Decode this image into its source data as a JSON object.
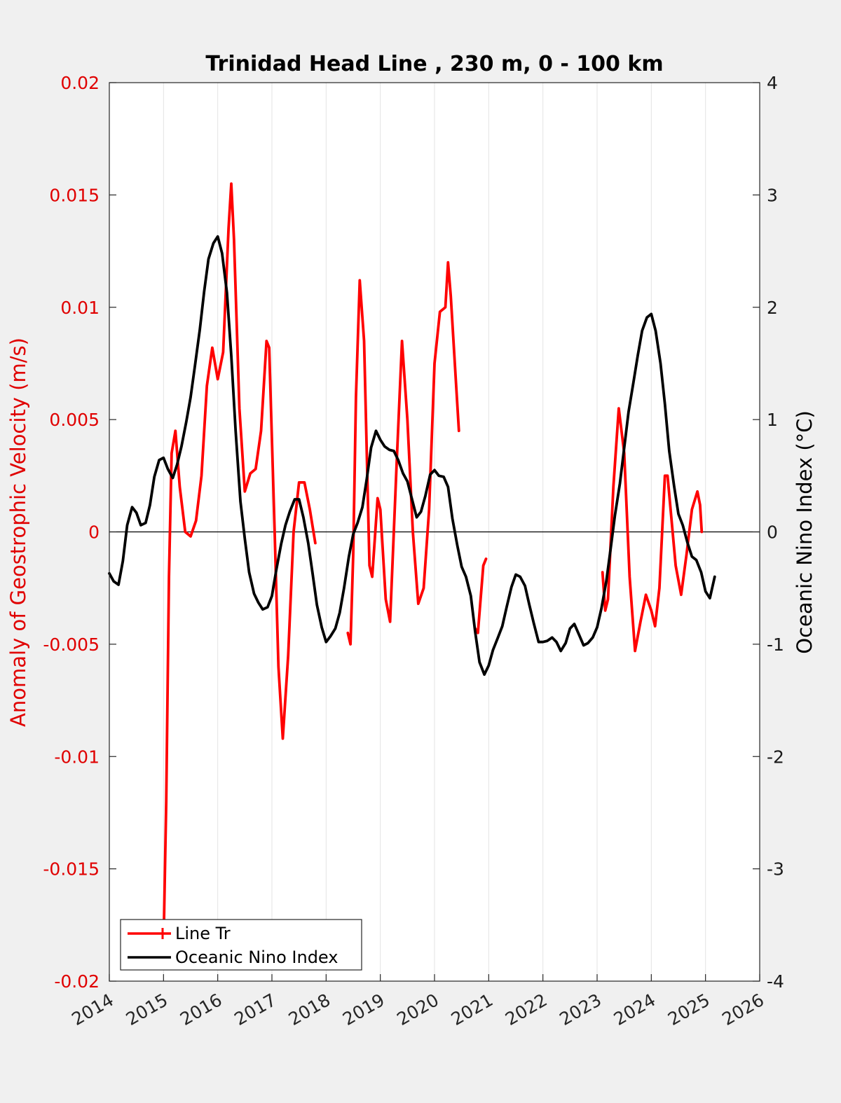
{
  "chart_data": {
    "type": "line",
    "title": "Trinidad Head Line , 230 m, 0 - 100 km",
    "xlabel": "",
    "ylabel_left": "Anomaly of Geostrophic Velocity (m/s)",
    "ylabel_right": "Oceanic Nino Index (°C)",
    "xlim": [
      2014,
      2026
    ],
    "ylim_left": [
      -0.02,
      0.02
    ],
    "ylim_right": [
      -4,
      4
    ],
    "x_ticks": [
      "2014",
      "2015",
      "2016",
      "2017",
      "2018",
      "2019",
      "2020",
      "2021",
      "2022",
      "2023",
      "2024",
      "2025",
      "2026"
    ],
    "y_ticks_left": [
      "-0.02",
      "-0.015",
      "-0.01",
      "-0.005",
      "0",
      "0.005",
      "0.01",
      "0.015",
      "0.02"
    ],
    "y_ticks_right": [
      "-4",
      "-3",
      "-2",
      "-1",
      "0",
      "1",
      "2",
      "3",
      "4"
    ],
    "grid": "vertical",
    "legend_position": "bottom-left",
    "colors": {
      "line_tr": "#ff0000",
      "oni": "#000000",
      "left_axis": "#e00000",
      "right_axis": "#1a1a1a"
    },
    "series": [
      {
        "name": "Line Tr",
        "axis": "left",
        "color": "#ff0000",
        "segments": [
          [
            [
              2015.0,
              -0.0185
            ],
            [
              2015.05,
              -0.012
            ],
            [
              2015.1,
              -0.002
            ],
            [
              2015.15,
              0.0035
            ],
            [
              2015.22,
              0.0045
            ],
            [
              2015.3,
              0.002
            ],
            [
              2015.4,
              0.0
            ],
            [
              2015.5,
              -0.0002
            ],
            [
              2015.6,
              0.0005
            ],
            [
              2015.7,
              0.0025
            ],
            [
              2015.8,
              0.0065
            ],
            [
              2015.9,
              0.0082
            ],
            [
              2016.0,
              0.0068
            ],
            [
              2016.1,
              0.008
            ],
            [
              2016.2,
              0.0135
            ],
            [
              2016.25,
              0.0155
            ],
            [
              2016.3,
              0.013
            ],
            [
              2016.4,
              0.0055
            ],
            [
              2016.5,
              0.0018
            ],
            [
              2016.6,
              0.0026
            ],
            [
              2016.7,
              0.0028
            ],
            [
              2016.8,
              0.0045
            ],
            [
              2016.9,
              0.0085
            ],
            [
              2016.95,
              0.0082
            ],
            [
              2017.05,
              0.0
            ],
            [
              2017.12,
              -0.006
            ],
            [
              2017.2,
              -0.0092
            ],
            [
              2017.3,
              -0.0055
            ],
            [
              2017.4,
              0.0
            ],
            [
              2017.5,
              0.0022
            ],
            [
              2017.6,
              0.0022
            ],
            [
              2017.7,
              0.001
            ],
            [
              2017.8,
              -0.0005
            ]
          ],
          [
            [
              2018.4,
              -0.0045
            ],
            [
              2018.45,
              -0.005
            ],
            [
              2018.5,
              -0.001
            ],
            [
              2018.55,
              0.006
            ],
            [
              2018.62,
              0.0112
            ],
            [
              2018.7,
              0.0085
            ],
            [
              2018.8,
              -0.0015
            ],
            [
              2018.85,
              -0.002
            ],
            [
              2018.95,
              0.0015
            ],
            [
              2019.0,
              0.001
            ],
            [
              2019.1,
              -0.003
            ],
            [
              2019.18,
              -0.004
            ],
            [
              2019.3,
              0.003
            ],
            [
              2019.4,
              0.0085
            ],
            [
              2019.5,
              0.005
            ],
            [
              2019.6,
              0.0
            ],
            [
              2019.7,
              -0.0032
            ],
            [
              2019.8,
              -0.0025
            ],
            [
              2019.9,
              0.001
            ],
            [
              2020.0,
              0.0075
            ],
            [
              2020.1,
              0.0098
            ],
            [
              2020.2,
              0.01
            ],
            [
              2020.25,
              0.012
            ],
            [
              2020.3,
              0.0105
            ],
            [
              2020.4,
              0.0065
            ],
            [
              2020.45,
              0.0045
            ]
          ],
          [
            [
              2020.75,
              -0.0043
            ],
            [
              2020.8,
              -0.0045
            ],
            [
              2020.9,
              -0.0015
            ],
            [
              2020.95,
              -0.0012
            ]
          ],
          [
            [
              2023.1,
              -0.0018
            ],
            [
              2023.15,
              -0.0035
            ],
            [
              2023.2,
              -0.003
            ],
            [
              2023.3,
              0.002
            ],
            [
              2023.4,
              0.0055
            ],
            [
              2023.5,
              0.0035
            ],
            [
              2023.6,
              -0.002
            ],
            [
              2023.7,
              -0.0053
            ],
            [
              2023.8,
              -0.004
            ],
            [
              2023.9,
              -0.0028
            ],
            [
              2024.0,
              -0.0035
            ],
            [
              2024.07,
              -0.0042
            ],
            [
              2024.15,
              -0.0025
            ],
            [
              2024.25,
              0.0025
            ],
            [
              2024.3,
              0.0025
            ],
            [
              2024.45,
              -0.0015
            ],
            [
              2024.55,
              -0.0028
            ],
            [
              2024.65,
              -0.001
            ],
            [
              2024.75,
              0.001
            ],
            [
              2024.85,
              0.0018
            ],
            [
              2024.9,
              0.0012
            ],
            [
              2024.93,
              0.0
            ]
          ]
        ]
      },
      {
        "name": "Oceanic Nino Index",
        "axis": "right",
        "color": "#000000",
        "points": [
          [
            2014.0,
            -0.37
          ],
          [
            2014.08,
            -0.44
          ],
          [
            2014.17,
            -0.47
          ],
          [
            2014.25,
            -0.26
          ],
          [
            2014.33,
            0.06
          ],
          [
            2014.42,
            0.22
          ],
          [
            2014.5,
            0.17
          ],
          [
            2014.58,
            0.06
          ],
          [
            2014.67,
            0.08
          ],
          [
            2014.75,
            0.24
          ],
          [
            2014.83,
            0.49
          ],
          [
            2014.92,
            0.64
          ],
          [
            2015.0,
            0.66
          ],
          [
            2015.08,
            0.56
          ],
          [
            2015.17,
            0.48
          ],
          [
            2015.25,
            0.6
          ],
          [
            2015.33,
            0.76
          ],
          [
            2015.42,
            0.98
          ],
          [
            2015.5,
            1.2
          ],
          [
            2015.58,
            1.48
          ],
          [
            2015.67,
            1.8
          ],
          [
            2015.75,
            2.14
          ],
          [
            2015.83,
            2.43
          ],
          [
            2015.92,
            2.57
          ],
          [
            2016.0,
            2.63
          ],
          [
            2016.08,
            2.48
          ],
          [
            2016.17,
            2.13
          ],
          [
            2016.25,
            1.57
          ],
          [
            2016.33,
            0.9
          ],
          [
            2016.42,
            0.27
          ],
          [
            2016.5,
            -0.06
          ],
          [
            2016.58,
            -0.36
          ],
          [
            2016.67,
            -0.55
          ],
          [
            2016.75,
            -0.63
          ],
          [
            2016.83,
            -0.69
          ],
          [
            2016.92,
            -0.67
          ],
          [
            2017.0,
            -0.57
          ],
          [
            2017.08,
            -0.34
          ],
          [
            2017.17,
            -0.11
          ],
          [
            2017.25,
            0.06
          ],
          [
            2017.33,
            0.18
          ],
          [
            2017.42,
            0.29
          ],
          [
            2017.5,
            0.29
          ],
          [
            2017.58,
            0.13
          ],
          [
            2017.67,
            -0.1
          ],
          [
            2017.75,
            -0.37
          ],
          [
            2017.83,
            -0.65
          ],
          [
            2017.92,
            -0.85
          ],
          [
            2018.0,
            -0.98
          ],
          [
            2018.08,
            -0.93
          ],
          [
            2018.17,
            -0.86
          ],
          [
            2018.25,
            -0.72
          ],
          [
            2018.33,
            -0.5
          ],
          [
            2018.42,
            -0.22
          ],
          [
            2018.5,
            -0.02
          ],
          [
            2018.58,
            0.08
          ],
          [
            2018.67,
            0.22
          ],
          [
            2018.75,
            0.47
          ],
          [
            2018.83,
            0.75
          ],
          [
            2018.92,
            0.9
          ],
          [
            2019.0,
            0.82
          ],
          [
            2019.08,
            0.76
          ],
          [
            2019.17,
            0.73
          ],
          [
            2019.25,
            0.72
          ],
          [
            2019.33,
            0.64
          ],
          [
            2019.42,
            0.52
          ],
          [
            2019.5,
            0.45
          ],
          [
            2019.58,
            0.3
          ],
          [
            2019.67,
            0.13
          ],
          [
            2019.75,
            0.18
          ],
          [
            2019.83,
            0.32
          ],
          [
            2019.92,
            0.51
          ],
          [
            2020.0,
            0.55
          ],
          [
            2020.08,
            0.5
          ],
          [
            2020.17,
            0.49
          ],
          [
            2020.25,
            0.4
          ],
          [
            2020.33,
            0.12
          ],
          [
            2020.42,
            -0.12
          ],
          [
            2020.5,
            -0.31
          ],
          [
            2020.58,
            -0.4
          ],
          [
            2020.67,
            -0.57
          ],
          [
            2020.75,
            -0.89
          ],
          [
            2020.83,
            -1.16
          ],
          [
            2020.92,
            -1.27
          ],
          [
            2021.0,
            -1.19
          ],
          [
            2021.08,
            -1.05
          ],
          [
            2021.17,
            -0.94
          ],
          [
            2021.25,
            -0.84
          ],
          [
            2021.33,
            -0.67
          ],
          [
            2021.42,
            -0.49
          ],
          [
            2021.5,
            -0.38
          ],
          [
            2021.58,
            -0.4
          ],
          [
            2021.67,
            -0.48
          ],
          [
            2021.75,
            -0.65
          ],
          [
            2021.83,
            -0.81
          ],
          [
            2021.92,
            -0.98
          ],
          [
            2022.0,
            -0.98
          ],
          [
            2022.08,
            -0.97
          ],
          [
            2022.17,
            -0.94
          ],
          [
            2022.25,
            -0.98
          ],
          [
            2022.33,
            -1.06
          ],
          [
            2022.42,
            -0.99
          ],
          [
            2022.5,
            -0.86
          ],
          [
            2022.58,
            -0.82
          ],
          [
            2022.67,
            -0.92
          ],
          [
            2022.75,
            -1.01
          ],
          [
            2022.83,
            -0.99
          ],
          [
            2022.92,
            -0.94
          ],
          [
            2023.0,
            -0.85
          ],
          [
            2023.08,
            -0.68
          ],
          [
            2023.17,
            -0.44
          ],
          [
            2023.25,
            -0.15
          ],
          [
            2023.33,
            0.15
          ],
          [
            2023.42,
            0.43
          ],
          [
            2023.5,
            0.75
          ],
          [
            2023.58,
            1.07
          ],
          [
            2023.67,
            1.33
          ],
          [
            2023.75,
            1.57
          ],
          [
            2023.83,
            1.79
          ],
          [
            2023.92,
            1.91
          ],
          [
            2024.0,
            1.94
          ],
          [
            2024.08,
            1.79
          ],
          [
            2024.17,
            1.5
          ],
          [
            2024.25,
            1.14
          ],
          [
            2024.33,
            0.72
          ],
          [
            2024.42,
            0.41
          ],
          [
            2024.5,
            0.16
          ],
          [
            2024.58,
            0.06
          ],
          [
            2024.67,
            -0.1
          ],
          [
            2024.75,
            -0.22
          ],
          [
            2024.83,
            -0.25
          ],
          [
            2024.92,
            -0.36
          ],
          [
            2025.0,
            -0.53
          ],
          [
            2025.08,
            -0.59
          ],
          [
            2025.17,
            -0.4
          ]
        ]
      }
    ],
    "legend": [
      "Line Tr",
      "Oceanic Nino Index"
    ]
  }
}
